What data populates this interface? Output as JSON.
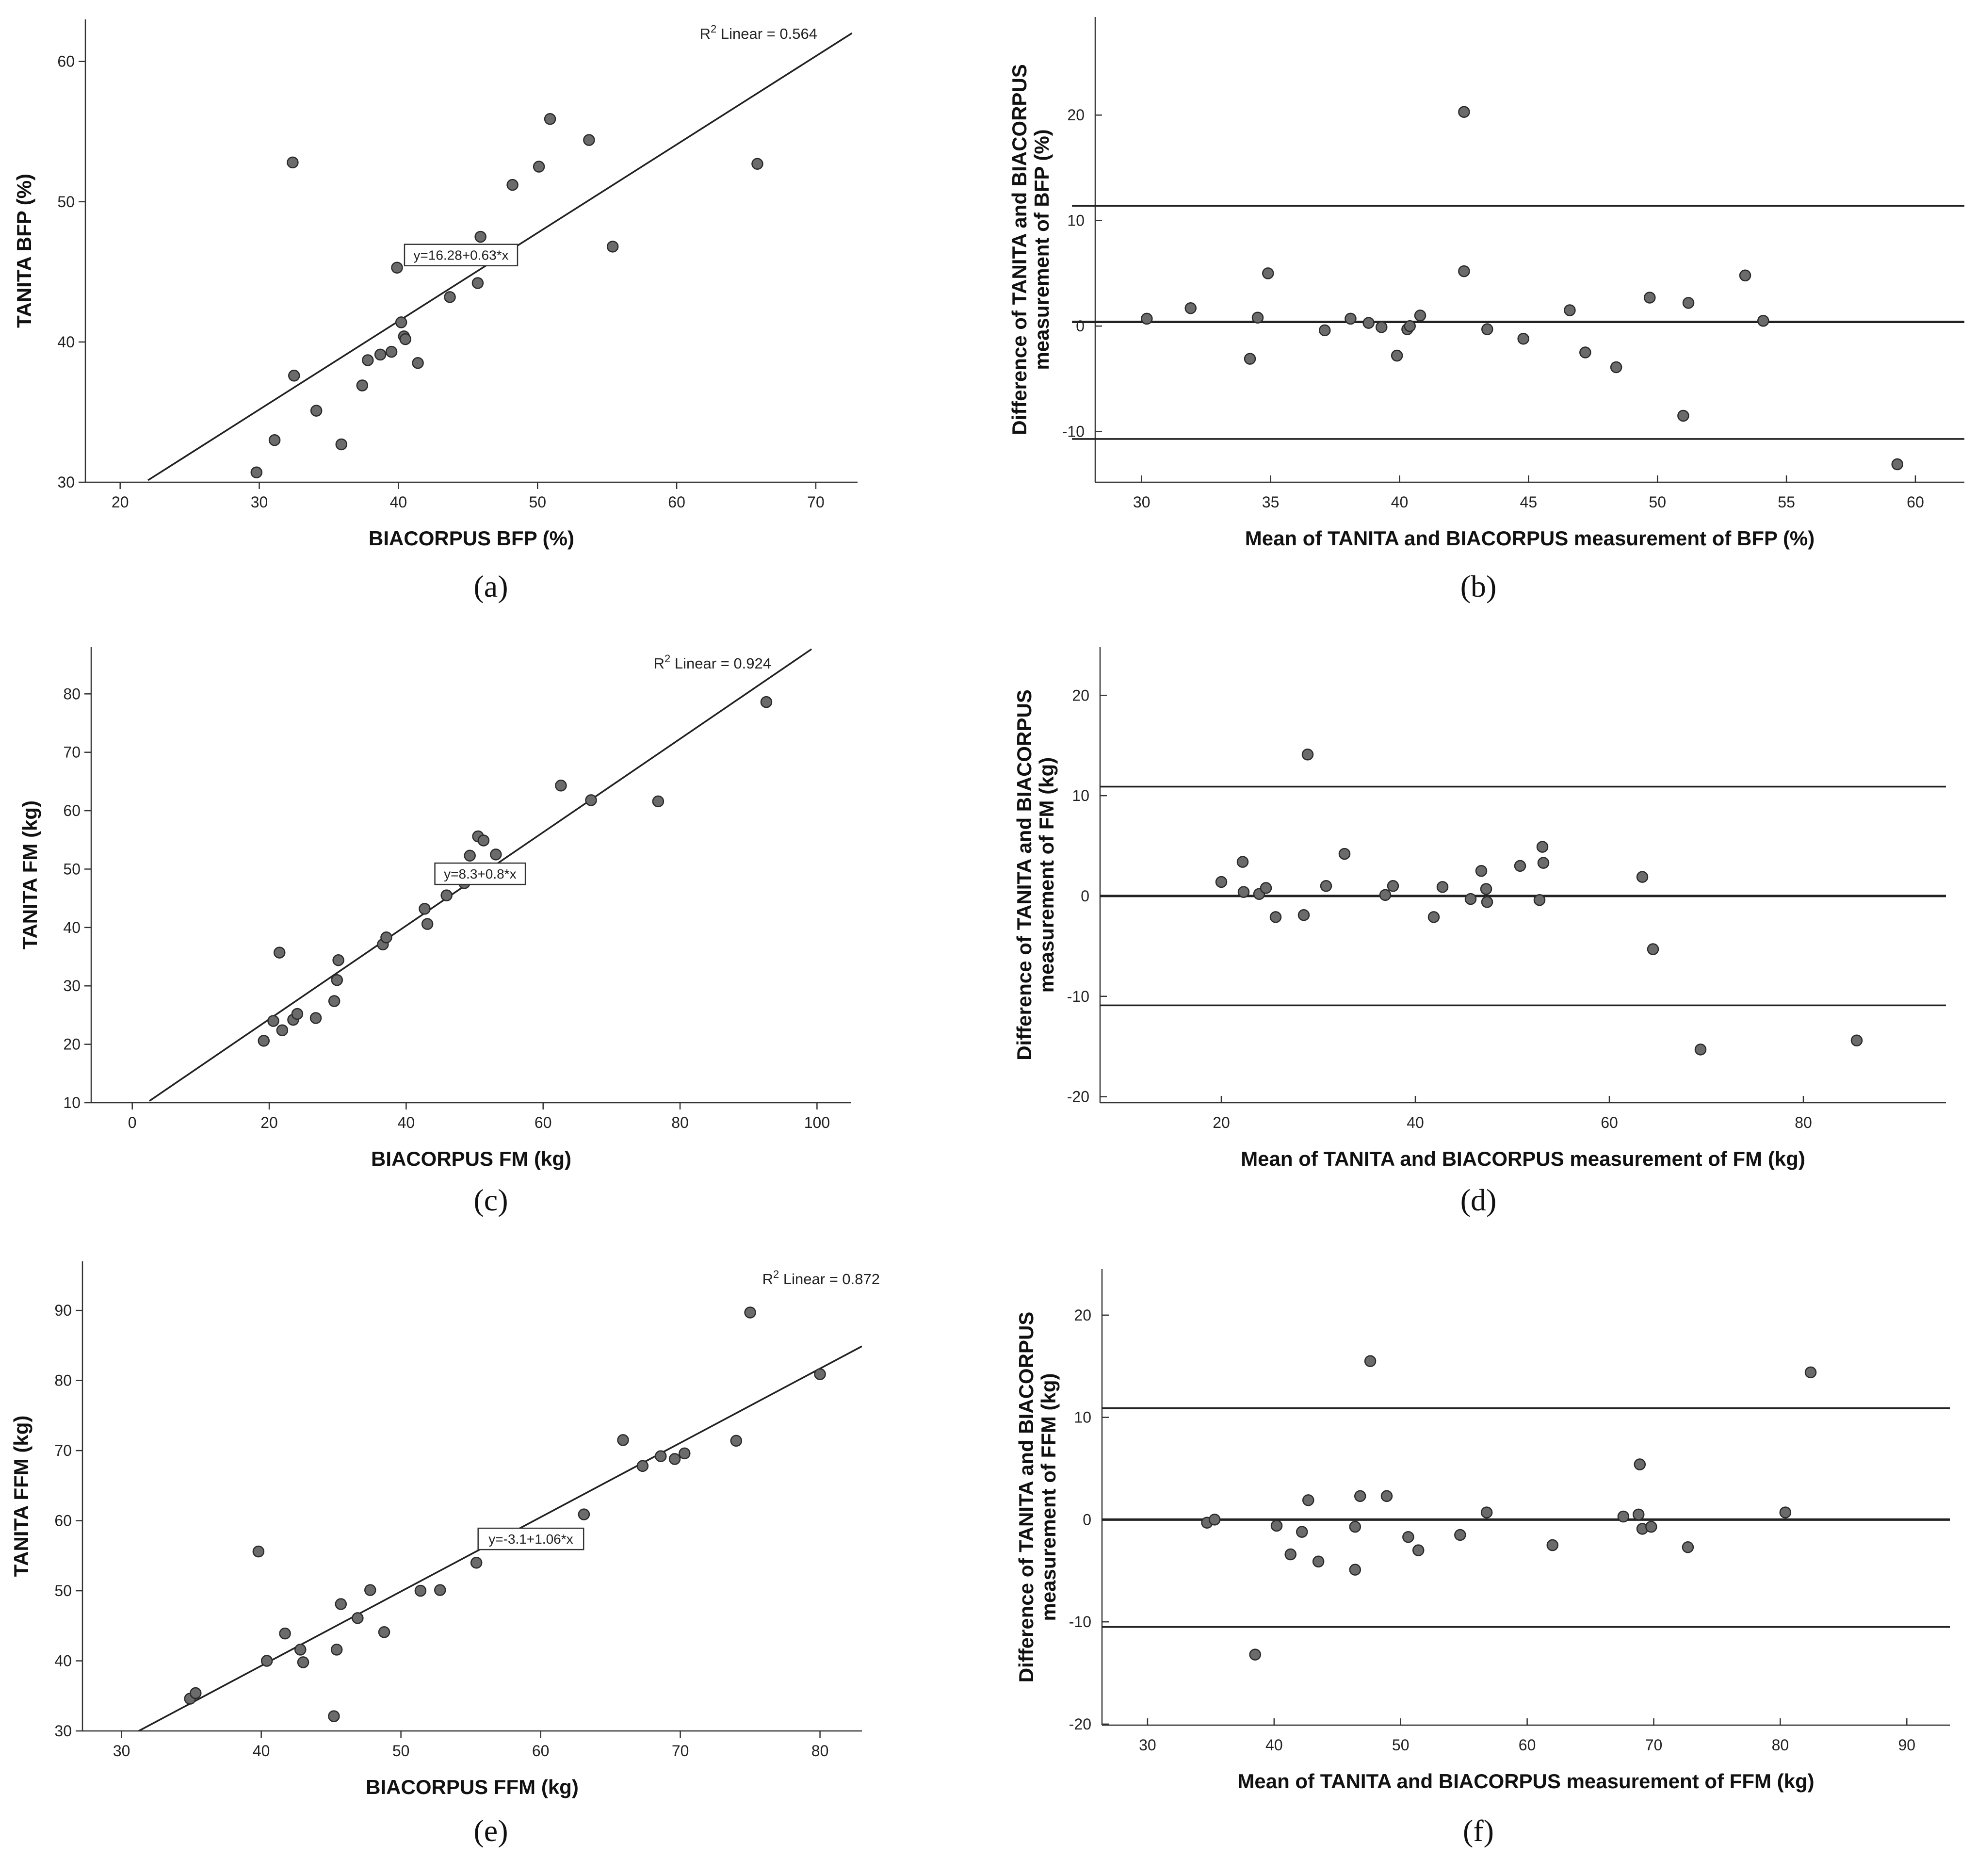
{
  "chart_data": [
    {
      "id": "a",
      "panel_label": "(a)",
      "type": "scatter",
      "xlabel": "BIACORPUS BFP (%)",
      "ylabel": "TANITA BFP (%)",
      "xlim": [
        17.5,
        73
      ],
      "ylim": [
        30,
        63
      ],
      "xticks": [
        20,
        30,
        40,
        50,
        60,
        70
      ],
      "yticks": [
        30,
        40,
        50,
        60
      ],
      "points": [
        [
          29.8,
          30.7
        ],
        [
          31.1,
          33.0
        ],
        [
          32.4,
          52.8
        ],
        [
          32.5,
          37.6
        ],
        [
          34.1,
          35.1
        ],
        [
          35.9,
          32.7
        ],
        [
          37.4,
          36.9
        ],
        [
          37.8,
          38.7
        ],
        [
          38.7,
          39.1
        ],
        [
          39.5,
          39.3
        ],
        [
          39.9,
          45.3
        ],
        [
          40.2,
          41.4
        ],
        [
          40.4,
          40.4
        ],
        [
          40.5,
          40.2
        ],
        [
          41.4,
          38.5
        ],
        [
          43.7,
          43.2
        ],
        [
          45.7,
          44.2
        ],
        [
          45.9,
          47.5
        ],
        [
          48.2,
          51.2
        ],
        [
          50.1,
          52.5
        ],
        [
          50.9,
          55.9
        ],
        [
          53.7,
          54.4
        ],
        [
          55.4,
          46.8
        ],
        [
          65.8,
          52.7
        ]
      ],
      "fit": {
        "intercept": 16.28,
        "slope": 0.63,
        "x_start": 22,
        "x_end": 72.6
      },
      "r2_text": "Linear = 0.564",
      "r2_prefix": "R",
      "r2_sup": "2",
      "equation": "y=16.28+0.63*x",
      "equation_at": [
        44.5,
        46.2
      ]
    },
    {
      "id": "b",
      "panel_label": "(b)",
      "type": "scatter",
      "xlabel": "Mean of TANITA and BIACORPUS measurement of BFP (%)",
      "ylabel": [
        "Difference of TANITA and BIACORPUS",
        "measurement of BFP (%)"
      ],
      "xlim": [
        28.2,
        61.9
      ],
      "ylim": [
        -14.8,
        29.3
      ],
      "xticks": [
        30,
        35,
        40,
        45,
        50,
        55,
        60
      ],
      "yticks": [
        -10,
        0,
        10,
        20
      ],
      "points": [
        [
          30.2,
          0.7
        ],
        [
          31.9,
          1.7
        ],
        [
          34.2,
          -3.1
        ],
        [
          34.5,
          0.8
        ],
        [
          34.9,
          5.0
        ],
        [
          37.1,
          -0.4
        ],
        [
          38.1,
          0.7
        ],
        [
          38.8,
          0.3
        ],
        [
          39.3,
          -0.1
        ],
        [
          39.9,
          -2.8
        ],
        [
          40.3,
          -0.3
        ],
        [
          40.4,
          0.0
        ],
        [
          40.8,
          1.0
        ],
        [
          42.5,
          5.2
        ],
        [
          42.5,
          20.3
        ],
        [
          43.4,
          -0.3
        ],
        [
          44.8,
          -1.2
        ],
        [
          46.6,
          1.5
        ],
        [
          47.2,
          -2.5
        ],
        [
          48.4,
          -3.9
        ],
        [
          49.7,
          2.7
        ],
        [
          51.0,
          -8.5
        ],
        [
          51.2,
          2.2
        ],
        [
          53.4,
          4.8
        ],
        [
          54.1,
          0.5
        ],
        [
          59.3,
          -13.1
        ]
      ],
      "ref_lines": [
        11.4,
        0.4,
        -10.7
      ],
      "ref_x_range": [
        27.3,
        61.9
      ]
    },
    {
      "id": "c",
      "panel_label": "(c)",
      "type": "scatter",
      "xlabel": "BIACORPUS FM (kg)",
      "ylabel": "TANITA FM (kg)",
      "xlim": [
        -6,
        105
      ],
      "ylim": [
        10,
        88
      ],
      "xticks": [
        0,
        20,
        40,
        60,
        80,
        100
      ],
      "yticks": [
        10,
        20,
        30,
        40,
        50,
        60,
        70,
        80
      ],
      "points": [
        [
          19.2,
          20.6
        ],
        [
          20.6,
          24.0
        ],
        [
          21.5,
          35.7
        ],
        [
          21.9,
          22.4
        ],
        [
          23.5,
          24.2
        ],
        [
          24.1,
          25.2
        ],
        [
          26.8,
          24.5
        ],
        [
          29.5,
          27.4
        ],
        [
          29.9,
          31.0
        ],
        [
          30.1,
          34.4
        ],
        [
          36.6,
          37.1
        ],
        [
          37.1,
          38.3
        ],
        [
          42.7,
          43.2
        ],
        [
          43.1,
          40.6
        ],
        [
          45.9,
          45.5
        ],
        [
          48.5,
          47.6
        ],
        [
          49.3,
          52.3
        ],
        [
          50.5,
          55.6
        ],
        [
          51.3,
          54.9
        ],
        [
          53.1,
          52.5
        ],
        [
          62.6,
          64.3
        ],
        [
          67.0,
          61.8
        ],
        [
          76.8,
          61.6
        ],
        [
          92.6,
          78.6
        ]
      ],
      "fit": {
        "intercept": 8.3,
        "slope": 0.8,
        "x_start": 2.5,
        "x_end": 99.2
      },
      "r2_text": "Linear = 0.924",
      "r2_prefix": "R",
      "r2_sup": "2",
      "equation": "y=8.3+0.8*x",
      "equation_at": [
        50.8,
        49.2
      ]
    },
    {
      "id": "d",
      "panel_label": "(d)",
      "type": "scatter",
      "xlabel": "Mean of TANITA and BIACORPUS measurement of FM (kg)",
      "ylabel": [
        "Difference of TANITA and BIACORPUS",
        "measurement of FM (kg)"
      ],
      "xlim": [
        7.5,
        94.7
      ],
      "ylim": [
        -20.6,
        24.8
      ],
      "xticks": [
        20,
        40,
        60,
        80
      ],
      "yticks": [
        -20,
        -10,
        0,
        10,
        20
      ],
      "points": [
        [
          20.0,
          1.4
        ],
        [
          22.2,
          3.4
        ],
        [
          22.3,
          0.4
        ],
        [
          23.9,
          0.2
        ],
        [
          24.6,
          0.8
        ],
        [
          25.6,
          -2.1
        ],
        [
          28.5,
          -1.9
        ],
        [
          28.9,
          14.1
        ],
        [
          30.8,
          1.0
        ],
        [
          32.7,
          4.2
        ],
        [
          36.9,
          0.1
        ],
        [
          37.7,
          1.0
        ],
        [
          41.9,
          -2.1
        ],
        [
          42.8,
          0.9
        ],
        [
          45.7,
          -0.3
        ],
        [
          46.8,
          2.5
        ],
        [
          47.3,
          0.7
        ],
        [
          47.4,
          -0.6
        ],
        [
          50.8,
          3.0
        ],
        [
          52.8,
          -0.4
        ],
        [
          53.1,
          4.9
        ],
        [
          53.2,
          3.3
        ],
        [
          63.4,
          1.9
        ],
        [
          64.5,
          -5.3
        ],
        [
          69.4,
          -15.3
        ],
        [
          85.5,
          -14.4
        ]
      ],
      "ref_lines": [
        10.9,
        0.0,
        -10.9
      ],
      "ref_x_range": [
        7.5,
        94.7
      ]
    },
    {
      "id": "e",
      "panel_label": "(e)",
      "type": "scatter",
      "xlabel": "BIACORPUS FFM (kg)",
      "ylabel": "TANITA FFM (kg)",
      "xlim": [
        27.2,
        83
      ],
      "ylim": [
        30,
        97
      ],
      "xticks": [
        30,
        40,
        50,
        60,
        70,
        80
      ],
      "yticks": [
        30,
        40,
        50,
        60,
        70,
        80,
        90
      ],
      "points": [
        [
          34.9,
          34.6
        ],
        [
          35.3,
          35.4
        ],
        [
          39.8,
          55.6
        ],
        [
          40.4,
          40.0
        ],
        [
          41.7,
          43.9
        ],
        [
          42.8,
          41.6
        ],
        [
          43.0,
          39.8
        ],
        [
          45.2,
          32.1
        ],
        [
          45.4,
          41.6
        ],
        [
          45.7,
          48.1
        ],
        [
          46.9,
          46.1
        ],
        [
          47.8,
          50.1
        ],
        [
          48.8,
          44.1
        ],
        [
          51.4,
          50.0
        ],
        [
          52.8,
          50.1
        ],
        [
          55.4,
          54.0
        ],
        [
          63.1,
          60.9
        ],
        [
          65.9,
          71.5
        ],
        [
          67.3,
          67.8
        ],
        [
          68.6,
          69.2
        ],
        [
          69.6,
          68.8
        ],
        [
          70.3,
          69.6
        ],
        [
          74.0,
          71.4
        ],
        [
          75.0,
          89.7
        ],
        [
          80.0,
          80.9
        ]
      ],
      "fit": {
        "intercept": -3.1,
        "slope": 1.06,
        "x_start": 31.2,
        "x_end": 83
      },
      "r2_text": "Linear = 0.872",
      "r2_prefix": "R",
      "r2_sup": "2",
      "equation": "y=-3.1+1.06*x",
      "equation_at": [
        59.3,
        57.4
      ]
    },
    {
      "id": "f",
      "panel_label": "(f)",
      "type": "scatter",
      "xlabel": "Mean of TANITA and BIACORPUS measurement of FFM (kg)",
      "ylabel": [
        "Difference of TANITA and BIACORPUS",
        "measurement of FFM (kg)"
      ],
      "xlim": [
        26.4,
        93.4
      ],
      "ylim": [
        -20.1,
        24.5
      ],
      "xticks": [
        30,
        40,
        50,
        60,
        70,
        80,
        90
      ],
      "yticks": [
        -20,
        -10,
        0,
        10,
        20
      ],
      "points": [
        [
          34.7,
          -0.3
        ],
        [
          35.3,
          0.0
        ],
        [
          38.5,
          -13.2
        ],
        [
          40.2,
          -0.6
        ],
        [
          41.3,
          -3.4
        ],
        [
          42.2,
          -1.2
        ],
        [
          42.7,
          1.9
        ],
        [
          43.5,
          -4.1
        ],
        [
          46.4,
          -0.7
        ],
        [
          46.4,
          -4.9
        ],
        [
          46.8,
          2.3
        ],
        [
          47.6,
          15.5
        ],
        [
          48.9,
          2.3
        ],
        [
          50.6,
          -1.7
        ],
        [
          51.4,
          -3.0
        ],
        [
          54.7,
          -1.5
        ],
        [
          56.8,
          0.7
        ],
        [
          62.0,
          -2.5
        ],
        [
          67.6,
          0.3
        ],
        [
          68.8,
          0.5
        ],
        [
          68.9,
          5.4
        ],
        [
          69.1,
          -0.9
        ],
        [
          69.8,
          -0.7
        ],
        [
          72.7,
          -2.7
        ],
        [
          80.4,
          0.7
        ],
        [
          82.4,
          14.4
        ]
      ],
      "ref_lines": [
        10.9,
        0.0,
        -10.5
      ],
      "ref_x_range": [
        26.4,
        93.4
      ]
    }
  ]
}
